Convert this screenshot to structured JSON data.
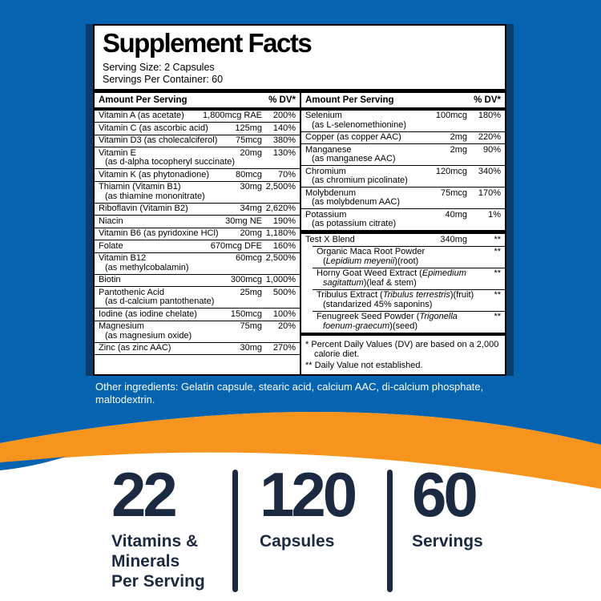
{
  "colors": {
    "blue": "#0563af",
    "navy": "#0e3c68",
    "orange": "#f7941d",
    "ink": "#1b2a41"
  },
  "panel": {
    "title": "Supplement Facts",
    "serving_size": "Serving Size: 2 Capsules",
    "servings_per_container": "Servings Per Container: 60",
    "columns": [
      {
        "header": {
          "amount": "Amount Per Serving",
          "dv": "% DV*"
        },
        "rows": [
          {
            "name": "Vitamin A (as acetate)",
            "amount": "1,800mcg RAE",
            "dv": "200%"
          },
          {
            "name": "Vitamin C (as ascorbic acid)",
            "amount": "125mg",
            "dv": "140%"
          },
          {
            "name": "Vitamin D3 (as cholecalciferol)",
            "amount": "75mcg",
            "dv": "380%"
          },
          {
            "name": "Vitamin E",
            "sub": "(as d-alpha tocopheryl succinate)",
            "amount": "20mg",
            "dv": "130%"
          },
          {
            "name": "Vitamin K (as phytonadione)",
            "amount": "80mcg",
            "dv": "70%"
          },
          {
            "name": "Thiamin (Vitamin B1)",
            "sub": "(as thiamine mononitrate)",
            "amount": "30mg",
            "dv": "2,500%"
          },
          {
            "name": "Riboflavin (Vitamin B2)",
            "amount": "34mg",
            "dv": "2,620%"
          },
          {
            "name": "Niacin",
            "amount": "30mg NE",
            "dv": "190%"
          },
          {
            "name": "Vitamin B6 (as pyridoxine HCl)",
            "amount": "20mg",
            "dv": "1,180%"
          },
          {
            "name": "Folate",
            "amount": "670mcg DFE",
            "dv": "160%"
          },
          {
            "name": "Vitamin B12",
            "sub": "(as methylcobalamin)",
            "amount": "60mcg",
            "dv": "2,500%"
          },
          {
            "name": "Biotin",
            "amount": "300mcg",
            "dv": "1,000%"
          },
          {
            "name": "Pantothenic Acid",
            "sub": "(as d-calcium pantothenate)",
            "amount": "25mg",
            "dv": "500%"
          },
          {
            "name": "Iodine (as iodine chelate)",
            "amount": "150mcg",
            "dv": "100%"
          },
          {
            "name": "Magnesium",
            "sub": "(as magnesium oxide)",
            "amount": "75mg",
            "dv": "20%"
          },
          {
            "name": "Zinc (as zinc AAC)",
            "amount": "30mg",
            "dv": "270%"
          }
        ]
      },
      {
        "header": {
          "amount": "Amount Per Serving",
          "dv": "% DV*"
        },
        "rows": [
          {
            "name": "Selenium",
            "sub": "(as L-selenomethionine)",
            "amount": "100mcg",
            "dv": "180%"
          },
          {
            "name": "Copper (as copper AAC)",
            "amount": "2mg",
            "dv": "220%"
          },
          {
            "name": "Manganese",
            "sub": "(as manganese AAC)",
            "amount": "2mg",
            "dv": "90%"
          },
          {
            "name": "Chromium",
            "sub": "(as chromium picolinate)",
            "amount": "120mcg",
            "dv": "340%"
          },
          {
            "name": "Molybdenum",
            "sub": "(as molybdenum AAC)",
            "amount": "75mcg",
            "dv": "170%"
          },
          {
            "name": "Potassium",
            "sub": "(as potassium citrate)",
            "amount": "40mg",
            "dv": "1%"
          },
          {
            "name": "Test X Blend",
            "amount": "340mg",
            "dv": "**",
            "sep": "thick"
          },
          {
            "name": "Organic Maca Root Powder",
            "sub": "(*Lepidium meyenii*)(root)",
            "dv": "**",
            "indent": true
          },
          {
            "name": "Horny Goat Weed Extract (*Epimedium*",
            "sub": "*sagitattum*)(leaf & stem)",
            "dv": "**",
            "indent": true
          },
          {
            "name": "Tribulus Extract (*Tribulus terrestris*)(fruit)",
            "sub": "(standarized 45% saponins)",
            "dv": "**",
            "indent": true
          },
          {
            "name": "Fenugreek Seed Powder (*Trigonella*",
            "sub": "*foenum-graecum*)(seed)",
            "dv": "**",
            "indent": true
          }
        ],
        "footnotes": [
          {
            "marker": "*",
            "text": "Percent Daily Values (DV) are based on a 2,000 calorie diet."
          },
          {
            "marker": "**",
            "text": "Daily Value not established."
          }
        ]
      }
    ]
  },
  "other_ingredients": "Other ingredients: Gelatin capsule, stearic acid, calcium AAC, di-calcium phosphate, maltodextrin.",
  "stats": [
    {
      "value": "22",
      "label_lines": [
        "Vitamins &",
        "Minerals",
        "Per Serving"
      ]
    },
    {
      "value": "120",
      "label_lines": [
        "Capsules"
      ]
    },
    {
      "value": "60",
      "label_lines": [
        "Servings"
      ]
    }
  ]
}
